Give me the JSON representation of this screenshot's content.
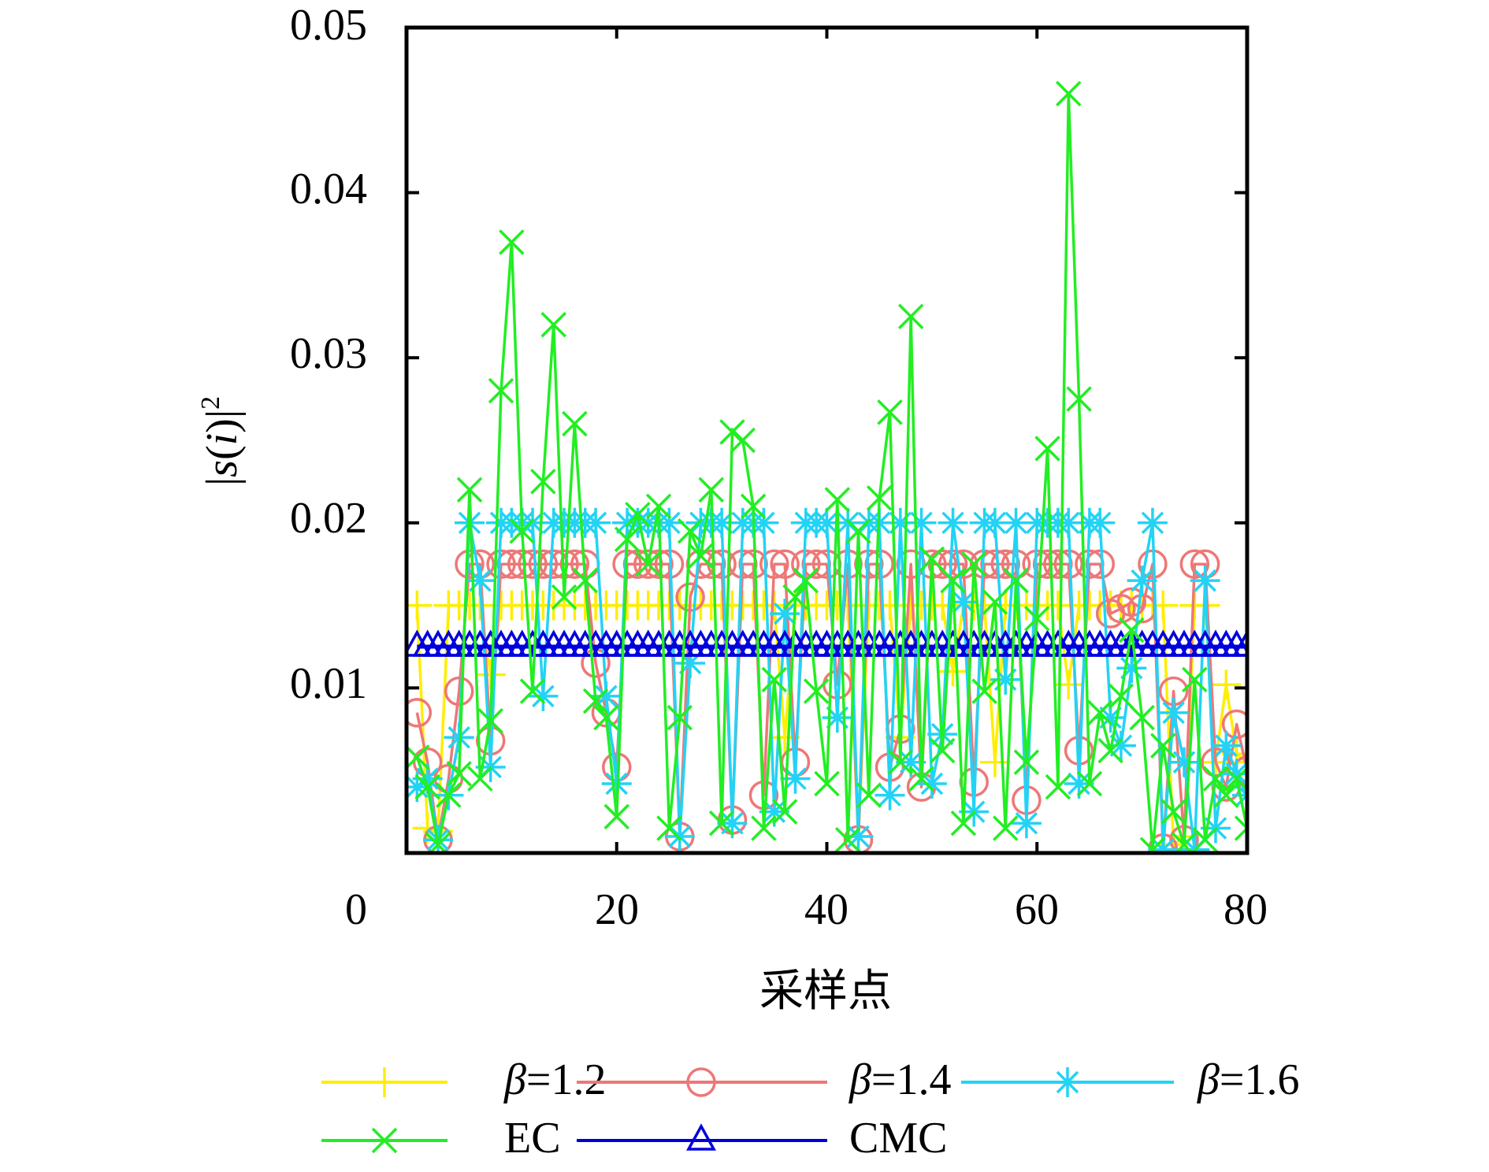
{
  "chart_data": {
    "type": "line",
    "title": "",
    "xlabel": "采样点",
    "ylabel": "|s(i)|²",
    "ylabel_parts": {
      "bar_left": "|",
      "s": "s",
      "paren_open": "(",
      "i": "i",
      "paren_close": ")",
      "bar_right": "|",
      "sup": "2"
    },
    "xlim": [
      0,
      80
    ],
    "ylim": [
      0,
      0.05
    ],
    "xticks": [
      0,
      20,
      40,
      60,
      80
    ],
    "xtick_labels": [
      "0",
      "20",
      "40",
      "60",
      "80"
    ],
    "yticks": [
      0.01,
      0.02,
      0.03,
      0.04,
      0.05
    ],
    "ytick_labels": [
      "0.01",
      "0.02",
      "0.03",
      "0.04",
      "0.05"
    ],
    "grid": false,
    "legend_position": "bottom",
    "x": [
      1,
      2,
      3,
      4,
      5,
      6,
      7,
      8,
      9,
      10,
      11,
      12,
      13,
      14,
      15,
      16,
      17,
      18,
      19,
      20,
      21,
      22,
      23,
      24,
      25,
      26,
      27,
      28,
      29,
      30,
      31,
      32,
      33,
      34,
      35,
      36,
      37,
      38,
      39,
      40,
      41,
      42,
      43,
      44,
      45,
      46,
      47,
      48,
      49,
      50,
      51,
      52,
      53,
      54,
      55,
      56,
      57,
      58,
      59,
      60,
      61,
      62,
      63,
      64,
      65,
      66,
      67,
      68,
      69,
      70,
      71,
      72,
      73,
      74,
      75,
      76,
      77,
      78,
      79,
      80
    ],
    "series": [
      {
        "name": "β=1.2",
        "legend_prefix": "β",
        "legend_suffix": "=1.2",
        "color": "#ffee00",
        "marker": "plus",
        "values": [
          0.015,
          0.0015,
          0.0013,
          0.015,
          0.015,
          0.015,
          0.015,
          0.0108,
          0.015,
          0.015,
          0.015,
          0.015,
          0.015,
          0.015,
          0.015,
          0.015,
          0.015,
          0.015,
          0.015,
          0.015,
          0.015,
          0.015,
          0.015,
          0.015,
          0.015,
          0.015,
          0.015,
          0.015,
          0.015,
          0.015,
          0.015,
          0.015,
          0.015,
          0.015,
          0.015,
          0.007,
          0.015,
          0.015,
          0.015,
          0.015,
          0.015,
          0.015,
          0.001,
          0.015,
          0.015,
          0.015,
          0.007,
          0.015,
          0.015,
          0.015,
          0.015,
          0.011,
          0.015,
          0.015,
          0.015,
          0.0055,
          0.015,
          0.015,
          0.015,
          0.015,
          0.015,
          0.015,
          0.0102,
          0.015,
          0.015,
          0.015,
          0.015,
          0.015,
          0.015,
          0.015,
          0.015,
          0.015,
          0.0005,
          0.001,
          0.015,
          0.015,
          0.0055,
          0.0102,
          0.006,
          0.0055
        ]
      },
      {
        "name": "β=1.4",
        "legend_prefix": "β",
        "legend_suffix": "=1.4",
        "color": "#ee7777",
        "marker": "circle",
        "values": [
          0.0085,
          0.0055,
          0.0008,
          0.0045,
          0.0098,
          0.0175,
          0.0175,
          0.0068,
          0.0175,
          0.0175,
          0.0175,
          0.0175,
          0.0175,
          0.0175,
          0.0175,
          0.0175,
          0.0175,
          0.0115,
          0.0085,
          0.0052,
          0.0175,
          0.0175,
          0.0175,
          0.0175,
          0.0175,
          0.001,
          0.0155,
          0.0175,
          0.0175,
          0.0175,
          0.002,
          0.0175,
          0.0175,
          0.0035,
          0.0175,
          0.0175,
          0.0055,
          0.0175,
          0.0175,
          0.0175,
          0.0102,
          0.0175,
          0.0008,
          0.0175,
          0.0175,
          0.0052,
          0.0075,
          0.0175,
          0.004,
          0.0175,
          0.0175,
          0.0175,
          0.0175,
          0.0043,
          0.0175,
          0.0175,
          0.0175,
          0.0175,
          0.0032,
          0.0175,
          0.0175,
          0.0175,
          0.0175,
          0.0062,
          0.0175,
          0.0175,
          0.0145,
          0.0148,
          0.0152,
          0.0148,
          0.0175,
          0.0003,
          0.0098,
          0.0008,
          0.0175,
          0.0175,
          0.0055,
          0.004,
          0.0078,
          0.005
        ]
      },
      {
        "name": "β=1.6",
        "legend_prefix": "β",
        "legend_suffix": "=1.6",
        "color": "#22d3f5",
        "marker": "star",
        "values": [
          0.004,
          0.0045,
          0.0008,
          0.0035,
          0.007,
          0.02,
          0.0165,
          0.0052,
          0.02,
          0.02,
          0.02,
          0.02,
          0.0095,
          0.02,
          0.02,
          0.02,
          0.02,
          0.02,
          0.0095,
          0.0042,
          0.02,
          0.02,
          0.02,
          0.02,
          0.02,
          0.001,
          0.0115,
          0.02,
          0.02,
          0.02,
          0.0018,
          0.02,
          0.02,
          0.02,
          0.0025,
          0.0145,
          0.0045,
          0.02,
          0.02,
          0.02,
          0.0082,
          0.02,
          0.001,
          0.02,
          0.02,
          0.0035,
          0.02,
          0.0055,
          0.02,
          0.0042,
          0.0072,
          0.02,
          0.0152,
          0.0025,
          0.02,
          0.02,
          0.0105,
          0.02,
          0.0018,
          0.02,
          0.02,
          0.02,
          0.02,
          0.0042,
          0.02,
          0.02,
          0.0082,
          0.0065,
          0.0112,
          0.0165,
          0.02,
          0.0002,
          0.0085,
          0.0055,
          0.0002,
          0.0165,
          0.0015,
          0.0065,
          0.0048,
          0.0035
        ]
      },
      {
        "name": "EC",
        "legend_prefix": "",
        "legend_suffix": "EC",
        "color": "#22ee22",
        "marker": "cross",
        "values": [
          0.0058,
          0.004,
          0.0005,
          0.0035,
          0.0048,
          0.022,
          0.0045,
          0.008,
          0.028,
          0.037,
          0.0195,
          0.0098,
          0.0225,
          0.032,
          0.0155,
          0.026,
          0.0165,
          0.0092,
          0.0082,
          0.0022,
          0.019,
          0.0205,
          0.0175,
          0.021,
          0.0015,
          0.0082,
          0.0195,
          0.018,
          0.022,
          0.0018,
          0.0255,
          0.025,
          0.021,
          0.0015,
          0.0105,
          0.0025,
          0.0155,
          0.0165,
          0.0098,
          0.0042,
          0.0214,
          0.0008,
          0.0195,
          0.0035,
          0.0215,
          0.0267,
          0.0055,
          0.0325,
          0.0045,
          0.0178,
          0.0062,
          0.0165,
          0.0018,
          0.0175,
          0.0098,
          0.0152,
          0.0015,
          0.0165,
          0.0055,
          0.0142,
          0.0245,
          0.004,
          0.046,
          0.0275,
          0.0042,
          0.0085,
          0.0062,
          0.0095,
          0.0135,
          0.0082,
          0.0002,
          0.0065,
          0.0025,
          0.0005,
          0.0105,
          0.0008,
          0.0045,
          0.0035,
          0.0045,
          0.0015
        ]
      },
      {
        "name": "CMC",
        "legend_prefix": "",
        "legend_suffix": "CMC",
        "color": "#0000dd",
        "marker": "triangle",
        "values": [
          0.0125,
          0.0125,
          0.0125,
          0.0125,
          0.0125,
          0.0125,
          0.0125,
          0.0125,
          0.0125,
          0.0125,
          0.0125,
          0.0125,
          0.0125,
          0.0125,
          0.0125,
          0.0125,
          0.0125,
          0.0125,
          0.0125,
          0.0125,
          0.0125,
          0.0125,
          0.0125,
          0.0125,
          0.0125,
          0.0125,
          0.0125,
          0.0125,
          0.0125,
          0.0125,
          0.0125,
          0.0125,
          0.0125,
          0.0125,
          0.0125,
          0.0125,
          0.0125,
          0.0125,
          0.0125,
          0.0125,
          0.0125,
          0.0125,
          0.0125,
          0.0125,
          0.0125,
          0.0125,
          0.0125,
          0.0125,
          0.0125,
          0.0125,
          0.0125,
          0.0125,
          0.0125,
          0.0125,
          0.0125,
          0.0125,
          0.0125,
          0.0125,
          0.0125,
          0.0125,
          0.0125,
          0.0125,
          0.0125,
          0.0125,
          0.0125,
          0.0125,
          0.0125,
          0.0125,
          0.0125,
          0.0125,
          0.0125,
          0.0125,
          0.0125,
          0.0125,
          0.0125,
          0.0125,
          0.0125,
          0.0125,
          0.0125,
          0.0125
        ]
      }
    ]
  }
}
